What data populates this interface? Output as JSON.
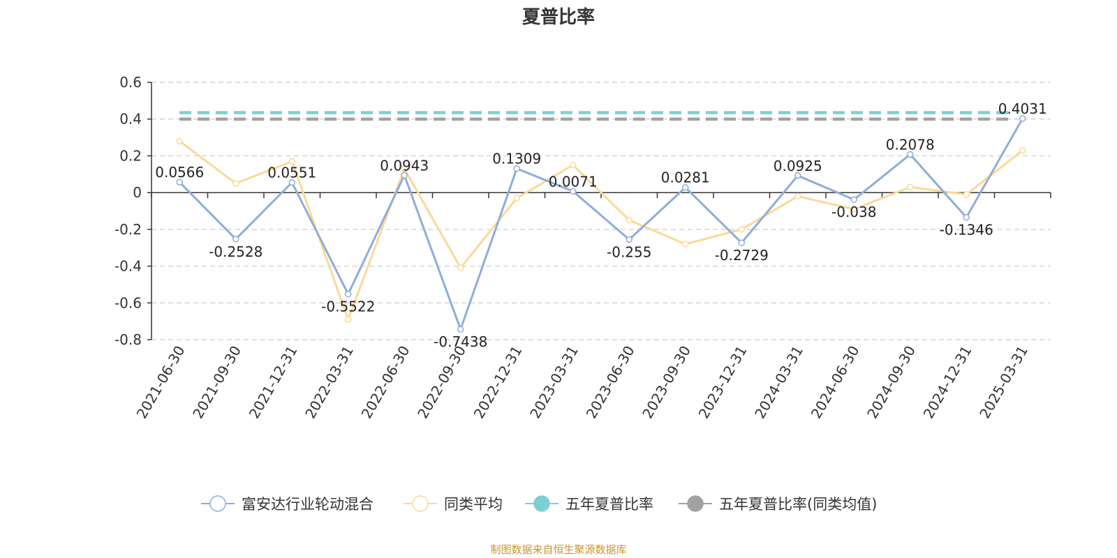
{
  "chart_data": {
    "type": "line",
    "title": "夏普比率",
    "source": "制图数据来自恒生聚源数据库",
    "categories": [
      "2021-06-30",
      "2021-09-30",
      "2021-12-31",
      "2022-03-31",
      "2022-06-30",
      "2022-09-30",
      "2022-12-31",
      "2023-03-31",
      "2023-06-30",
      "2023-09-30",
      "2023-12-31",
      "2024-03-31",
      "2024-06-30",
      "2024-09-30",
      "2024-12-31",
      "2025-03-31"
    ],
    "ylim": [
      -0.8,
      0.6
    ],
    "yticks": [
      "0.6",
      "0.4",
      "0.2",
      "0",
      "-0.2",
      "-0.4",
      "-0.6",
      "-0.8"
    ],
    "ytick_values": [
      0.6,
      0.4,
      0.2,
      0,
      -0.2,
      -0.4,
      -0.6,
      -0.8
    ],
    "grid": true,
    "legend_position": "bottom",
    "series": [
      {
        "name": "富安达行业轮动混合",
        "color": "#8eadd8",
        "values": [
          0.0566,
          -0.2528,
          0.0551,
          -0.5522,
          0.0943,
          -0.7438,
          0.1309,
          0.0071,
          -0.255,
          0.0281,
          -0.2729,
          0.0925,
          -0.038,
          0.2078,
          -0.1346,
          0.4031
        ],
        "labels": [
          "0.0566",
          "-0.2528",
          "0.0551",
          "-0.5522",
          "0.0943",
          "-0.7438",
          "0.1309",
          "0.0071",
          "-0.255",
          "0.0281",
          "-0.2729",
          "0.0925",
          "-0.038",
          "0.2078",
          "-0.1346",
          "0.4031"
        ]
      },
      {
        "name": "同类平均",
        "color": "#fad997",
        "values": [
          0.28,
          0.05,
          0.17,
          -0.69,
          0.13,
          -0.41,
          -0.03,
          0.15,
          -0.15,
          -0.28,
          -0.2,
          -0.02,
          -0.09,
          0.03,
          -0.01,
          0.23
        ]
      },
      {
        "name": "五年夏普比率",
        "color": "#7ecfd4",
        "value": 0.435
      },
      {
        "name": "五年夏普比率(同类均值)",
        "color": "#a2a2a2",
        "value": 0.4
      }
    ]
  }
}
